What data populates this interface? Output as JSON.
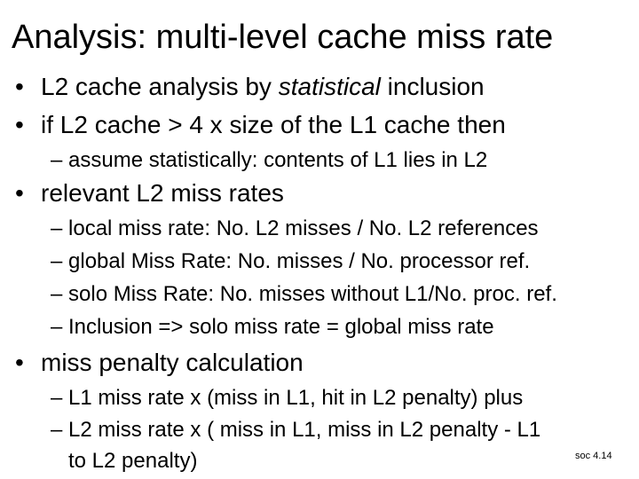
{
  "slide": {
    "title": "Analysis: multi-level cache miss rate",
    "bullets": [
      {
        "text_pre": "L2 cache analysis by ",
        "text_em": "statistical",
        "text_post": " inclusion"
      },
      {
        "text": "if L2 cache > 4 x size of the L1 cache then",
        "subs": [
          "– assume statistically: contents of L1 lies in L2"
        ]
      },
      {
        "text": "relevant L2 miss rates",
        "subs": [
          "– local miss rate: No. L2 misses / No. L2 references",
          "– global Miss Rate: No. misses / No. processor ref.",
          "– solo Miss Rate: No. misses without L1/No. proc. ref.",
          "– Inclusion => solo miss rate =  global miss rate"
        ]
      },
      {
        "text": "miss penalty calculation",
        "subs": [
          "– L1 miss rate x (miss in L1, hit in L2 penalty)  plus",
          "– L2 miss rate x ( miss in L1, miss in L2 penalty - L1",
          "to L2 penalty)"
        ]
      }
    ],
    "bullet_glyph": "•",
    "footer": "soc 4.14"
  }
}
